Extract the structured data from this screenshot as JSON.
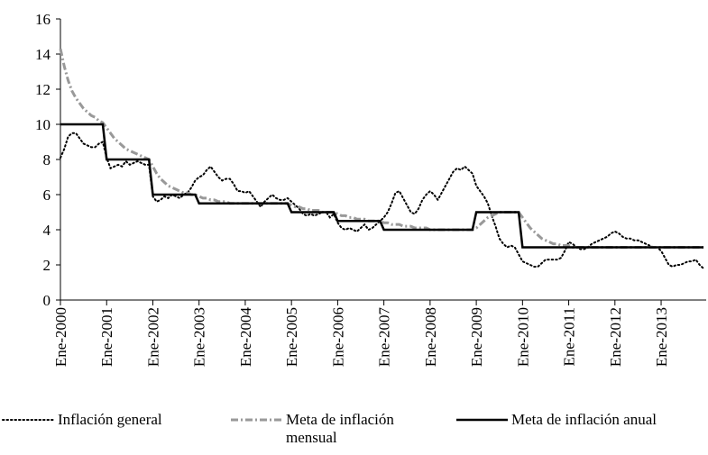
{
  "chart_data": {
    "type": "line",
    "categories": [
      "Ene-2000",
      null,
      null,
      null,
      null,
      null,
      null,
      null,
      null,
      null,
      null,
      null,
      "Ene-2001",
      null,
      null,
      null,
      null,
      null,
      null,
      null,
      null,
      null,
      null,
      null,
      "Ene-2002",
      null,
      null,
      null,
      null,
      null,
      null,
      null,
      null,
      null,
      null,
      null,
      "Ene-2003",
      null,
      null,
      null,
      null,
      null,
      null,
      null,
      null,
      null,
      null,
      null,
      "Ene-2004",
      null,
      null,
      null,
      null,
      null,
      null,
      null,
      null,
      null,
      null,
      null,
      "Ene-2005",
      null,
      null,
      null,
      null,
      null,
      null,
      null,
      null,
      null,
      null,
      null,
      "Ene-2006",
      null,
      null,
      null,
      null,
      null,
      null,
      null,
      null,
      null,
      null,
      null,
      "Ene-2007",
      null,
      null,
      null,
      null,
      null,
      null,
      null,
      null,
      null,
      null,
      null,
      "Ene-2008",
      null,
      null,
      null,
      null,
      null,
      null,
      null,
      null,
      null,
      null,
      null,
      "Ene-2009",
      null,
      null,
      null,
      null,
      null,
      null,
      null,
      null,
      null,
      null,
      null,
      "Ene-2010",
      null,
      null,
      null,
      null,
      null,
      null,
      null,
      null,
      null,
      null,
      null,
      "Ene-2011",
      null,
      null,
      null,
      null,
      null,
      null,
      null,
      null,
      null,
      null,
      null,
      "Ene-2012",
      null,
      null,
      null,
      null,
      null,
      null,
      null,
      null,
      null,
      null,
      null,
      "Ene-2013",
      null,
      null,
      null,
      null,
      null,
      null,
      null,
      null,
      null,
      null,
      null
    ],
    "series": [
      {
        "name": "Inflación general",
        "color": "#000000",
        "style": "dotted",
        "values": [
          8.1,
          8.6,
          9.3,
          9.5,
          9.5,
          9.2,
          8.9,
          8.8,
          8.7,
          8.7,
          8.9,
          9.0,
          8.1,
          7.5,
          7.6,
          7.7,
          7.6,
          7.9,
          7.7,
          7.8,
          7.9,
          7.8,
          7.7,
          7.7,
          5.9,
          5.6,
          5.7,
          5.9,
          5.8,
          6.0,
          5.9,
          5.8,
          6.0,
          6.1,
          6.4,
          6.8,
          7.0,
          7.1,
          7.4,
          7.6,
          7.3,
          7.0,
          6.8,
          6.9,
          6.9,
          6.6,
          6.2,
          6.2,
          6.1,
          6.2,
          5.9,
          5.6,
          5.3,
          5.6,
          5.8,
          6.0,
          5.8,
          5.7,
          5.7,
          5.8,
          5.6,
          5.4,
          5.2,
          4.9,
          4.8,
          4.9,
          4.8,
          4.9,
          5.0,
          5.0,
          4.7,
          4.9,
          4.4,
          4.1,
          4.0,
          4.1,
          4.0,
          3.9,
          4.1,
          4.3,
          4.0,
          4.1,
          4.3,
          4.5,
          4.7,
          5.0,
          5.5,
          6.1,
          6.2,
          5.8,
          5.4,
          5.0,
          4.9,
          5.2,
          5.7,
          6.0,
          6.2,
          6.0,
          5.7,
          6.1,
          6.5,
          6.9,
          7.3,
          7.5,
          7.4,
          7.6,
          7.4,
          7.2,
          6.5,
          6.2,
          5.9,
          5.5,
          4.8,
          4.2,
          3.5,
          3.2,
          3.0,
          3.1,
          3.0,
          2.6,
          2.2,
          2.1,
          2.0,
          1.9,
          1.9,
          2.1,
          2.3,
          2.3,
          2.3,
          2.3,
          2.4,
          2.8,
          3.3,
          3.2,
          3.0,
          2.9,
          2.9,
          3.0,
          3.2,
          3.3,
          3.4,
          3.5,
          3.6,
          3.8,
          3.9,
          3.8,
          3.6,
          3.5,
          3.5,
          3.4,
          3.4,
          3.3,
          3.2,
          3.1,
          3.0,
          3.0,
          2.8,
          2.4,
          2.0,
          1.9,
          2.0,
          2.0,
          2.1,
          2.2,
          2.2,
          2.3,
          2.0,
          1.8
        ]
      },
      {
        "name": "Meta de inflación mensual",
        "color": "#999999",
        "style": "dashed",
        "values": [
          14.3,
          13.3,
          12.5,
          11.9,
          11.5,
          11.2,
          10.9,
          10.7,
          10.5,
          10.4,
          10.2,
          10.1,
          9.8,
          9.5,
          9.2,
          9.0,
          8.8,
          8.6,
          8.5,
          8.4,
          8.3,
          8.2,
          8.1,
          8.0,
          7.6,
          7.2,
          6.9,
          6.7,
          6.5,
          6.4,
          6.3,
          6.2,
          6.1,
          6.1,
          6.0,
          6.0,
          5.9,
          5.8,
          5.8,
          5.7,
          5.7,
          5.6,
          5.6,
          5.6,
          5.5,
          5.5,
          5.5,
          5.5,
          5.5,
          5.5,
          5.5,
          5.5,
          5.5,
          5.5,
          5.5,
          5.5,
          5.5,
          5.5,
          5.5,
          5.5,
          5.4,
          5.3,
          5.3,
          5.2,
          5.2,
          5.1,
          5.1,
          5.1,
          5.0,
          5.0,
          5.0,
          5.0,
          4.9,
          4.8,
          4.8,
          4.7,
          4.7,
          4.6,
          4.6,
          4.6,
          4.5,
          4.5,
          4.5,
          4.5,
          4.4,
          4.4,
          4.3,
          4.3,
          4.3,
          4.2,
          4.2,
          4.2,
          4.1,
          4.1,
          4.1,
          4.1,
          4.0,
          4.0,
          4.0,
          4.0,
          4.0,
          4.0,
          4.0,
          4.0,
          4.0,
          4.0,
          4.0,
          4.0,
          4.1,
          4.3,
          4.5,
          4.7,
          4.8,
          4.9,
          5.0,
          5.0,
          5.0,
          5.0,
          5.0,
          5.0,
          4.7,
          4.4,
          4.1,
          3.9,
          3.7,
          3.5,
          3.4,
          3.3,
          3.2,
          3.2,
          3.1,
          3.1,
          3.1,
          3.0,
          3.0,
          3.0,
          3.0,
          3.0,
          3.0,
          3.0,
          3.0,
          3.0,
          3.0,
          3.0,
          3.0,
          3.0,
          3.0,
          3.0,
          3.0,
          3.0,
          3.0,
          3.0,
          3.0,
          3.0,
          3.0,
          3.0,
          3.0,
          3.0,
          3.0,
          3.0,
          3.0,
          3.0,
          3.0,
          3.0,
          3.0,
          3.0,
          3.0,
          3.0
        ]
      },
      {
        "name": "Meta de inflación anual",
        "color": "#000000",
        "style": "solid",
        "values": [
          10,
          10,
          10,
          10,
          10,
          10,
          10,
          10,
          10,
          10,
          10,
          10,
          8,
          8,
          8,
          8,
          8,
          8,
          8,
          8,
          8,
          8,
          8,
          8,
          6,
          6,
          6,
          6,
          6,
          6,
          6,
          6,
          6,
          6,
          6,
          6,
          5.5,
          5.5,
          5.5,
          5.5,
          5.5,
          5.5,
          5.5,
          5.5,
          5.5,
          5.5,
          5.5,
          5.5,
          5.5,
          5.5,
          5.5,
          5.5,
          5.5,
          5.5,
          5.5,
          5.5,
          5.5,
          5.5,
          5.5,
          5.5,
          5,
          5,
          5,
          5,
          5,
          5,
          5,
          5,
          5,
          5,
          5,
          5,
          4.5,
          4.5,
          4.5,
          4.5,
          4.5,
          4.5,
          4.5,
          4.5,
          4.5,
          4.5,
          4.5,
          4.5,
          4,
          4,
          4,
          4,
          4,
          4,
          4,
          4,
          4,
          4,
          4,
          4,
          4,
          4,
          4,
          4,
          4,
          4,
          4,
          4,
          4,
          4,
          4,
          4,
          5,
          5,
          5,
          5,
          5,
          5,
          5,
          5,
          5,
          5,
          5,
          5,
          3,
          3,
          3,
          3,
          3,
          3,
          3,
          3,
          3,
          3,
          3,
          3,
          3,
          3,
          3,
          3,
          3,
          3,
          3,
          3,
          3,
          3,
          3,
          3,
          3,
          3,
          3,
          3,
          3,
          3,
          3,
          3,
          3,
          3,
          3,
          3,
          3,
          3,
          3,
          3,
          3,
          3,
          3,
          3,
          3,
          3,
          3,
          3
        ]
      }
    ],
    "ylim": [
      0,
      16
    ],
    "yticks": [
      0,
      2,
      4,
      6,
      8,
      10,
      12,
      14,
      16
    ],
    "grid": false,
    "legend": "bottom"
  }
}
